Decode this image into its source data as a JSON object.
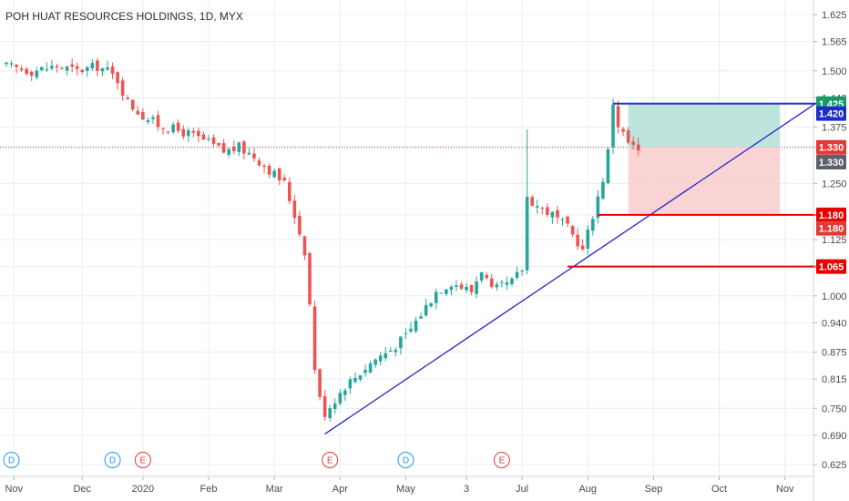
{
  "chart_data": {
    "type": "candlestick",
    "title": "POH HUAT RESOURCES HOLDINGS, 1D, MYX",
    "x_ticks": [
      "Nov",
      "Dec",
      "2020",
      "Feb",
      "Mar",
      "Apr",
      "May",
      "3",
      "Jul",
      "Aug",
      "Sep",
      "Oct",
      "Nov"
    ],
    "y_ticks": [
      "0.625",
      "0.690",
      "0.750",
      "0.815",
      "0.875",
      "0.940",
      "1.000",
      "1.065",
      "1.125",
      "1.180",
      "1.250",
      "1.330",
      "1.375",
      "1.440",
      "1.500",
      "1.565",
      "1.625"
    ],
    "ylim": [
      0.6,
      1.64
    ],
    "grid": true,
    "current_price": 1.33,
    "price_path": [
      [
        0,
        1.51
      ],
      [
        5,
        1.5
      ],
      [
        10,
        1.51
      ],
      [
        14,
        1.5
      ],
      [
        18,
        1.51
      ],
      [
        20,
        1.5
      ],
      [
        22,
        1.48
      ],
      [
        24,
        1.43
      ],
      [
        27,
        1.4
      ],
      [
        30,
        1.38
      ],
      [
        33,
        1.37
      ],
      [
        36,
        1.36
      ],
      [
        40,
        1.34
      ],
      [
        43,
        1.32
      ],
      [
        46,
        1.33
      ],
      [
        49,
        1.31
      ],
      [
        52,
        1.28
      ],
      [
        55,
        1.25
      ],
      [
        57,
        1.18
      ],
      [
        59,
        1.1
      ],
      [
        60,
        0.98
      ],
      [
        61,
        0.84
      ],
      [
        62,
        0.77
      ],
      [
        63,
        0.74
      ],
      [
        65,
        0.77
      ],
      [
        67,
        0.8
      ],
      [
        70,
        0.83
      ],
      [
        73,
        0.86
      ],
      [
        76,
        0.88
      ],
      [
        79,
        0.91
      ],
      [
        82,
        0.96
      ],
      [
        85,
        1.01
      ],
      [
        88,
        1.03
      ],
      [
        90,
        1.02
      ],
      [
        92,
        1.01
      ],
      [
        94,
        1.06
      ],
      [
        96,
        1.01
      ],
      [
        98,
        1.02
      ],
      [
        100,
        1.03
      ],
      [
        102,
        1.06
      ],
      [
        103,
        1.22
      ],
      [
        105,
        1.2
      ],
      [
        108,
        1.18
      ],
      [
        111,
        1.15
      ],
      [
        113,
        1.12
      ],
      [
        114,
        1.1
      ],
      [
        116,
        1.18
      ],
      [
        118,
        1.26
      ],
      [
        119,
        1.32
      ],
      [
        120,
        1.43
      ],
      [
        121,
        1.38
      ],
      [
        123,
        1.34
      ],
      [
        125,
        1.32
      ]
    ],
    "high_low_markers": [
      {
        "index": 103,
        "high": 1.37
      }
    ],
    "lines": [
      {
        "name": "trend",
        "color": "#2424c8",
        "from": {
          "day": 63,
          "price": 0.693
        },
        "to": {
          "day": 160,
          "price": 1.427
        }
      },
      {
        "name": "target",
        "color": "#1f2fc4",
        "from": {
          "day": 120,
          "price": 1.427
        },
        "to": {
          "day": 163,
          "price": 1.427
        }
      },
      {
        "name": "stop",
        "color": "#e60000",
        "from": {
          "day": 117,
          "price": 1.18
        },
        "to": {
          "day": 163,
          "price": 1.18
        }
      },
      {
        "name": "support",
        "color": "#e60000",
        "from": {
          "day": 111,
          "price": 1.065
        },
        "to": {
          "day": 163,
          "price": 1.065
        }
      }
    ],
    "boxes": [
      {
        "name": "profit",
        "color": "#b2e1d8",
        "top": 1.425,
        "bottom": 1.33,
        "start_day": 123,
        "end_day": 153
      },
      {
        "name": "loss",
        "color": "#f9cdcd",
        "top": 1.33,
        "bottom": 1.18,
        "start_day": 123,
        "end_day": 153
      }
    ],
    "price_tags": [
      {
        "price": 1.427,
        "text": "1.425",
        "bg": "#1a9a6c"
      },
      {
        "price": 1.405,
        "text": "1.420",
        "bg": "#1c2fc4"
      },
      {
        "price": 1.33,
        "text": "1.330",
        "bg": "#e53935"
      },
      {
        "price": 1.297,
        "text": "1.330",
        "bg": "#5d606b"
      },
      {
        "price": 1.18,
        "text": "1.180",
        "bg": "#e60000"
      },
      {
        "price": 1.15,
        "text": "1.180",
        "bg": "#e53935"
      },
      {
        "price": 1.065,
        "text": "1.065",
        "bg": "#e60000"
      }
    ],
    "event_markers": [
      {
        "day": 1,
        "letter": "D",
        "color": "#2196f3"
      },
      {
        "day": 21,
        "letter": "D",
        "color": "#2196f3"
      },
      {
        "day": 27,
        "letter": "E",
        "color": "#e53935"
      },
      {
        "day": 64,
        "letter": "E",
        "color": "#e53935"
      },
      {
        "day": 79,
        "letter": "D",
        "color": "#2196f3"
      },
      {
        "day": 98,
        "letter": "E",
        "color": "#e53935"
      }
    ]
  },
  "colors": {
    "up": "#26a69a",
    "down": "#ef5350",
    "grid": "#e9edf2",
    "axis_text": "#4a4a4a",
    "current_price_line": "#e53935"
  }
}
